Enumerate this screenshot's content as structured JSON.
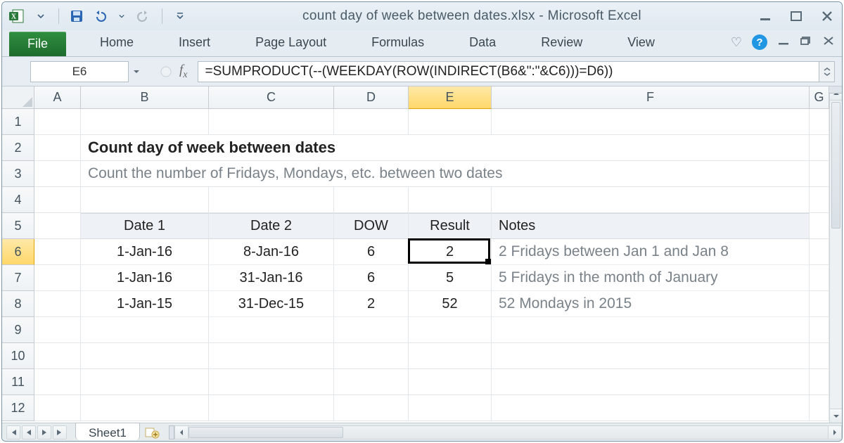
{
  "window": {
    "title": "count day of week between dates.xlsx - Microsoft Excel"
  },
  "qat": {
    "save": "save",
    "undo": "undo",
    "redo": "redo"
  },
  "ribbon": {
    "file": "File",
    "tabs": [
      "Home",
      "Insert",
      "Page Layout",
      "Formulas",
      "Data",
      "Review",
      "View"
    ]
  },
  "formula_bar": {
    "name_box": "E6",
    "formula": "=SUMPRODUCT(--(WEEKDAY(ROW(INDIRECT(B6&\":\"&C6)))=D6))"
  },
  "columns": {
    "labels": [
      "A",
      "B",
      "C",
      "D",
      "E",
      "F",
      "G"
    ],
    "widths": [
      66,
      182,
      178,
      106,
      118,
      452,
      28
    ],
    "selected_index": 4
  },
  "rows": {
    "count": 12,
    "height": 37,
    "selected_index": 5
  },
  "content": {
    "title": "Count day of week between dates",
    "subtitle": "Count the number of Fridays, Mondays, etc. between two dates",
    "headers": {
      "date1": "Date 1",
      "date2": "Date 2",
      "dow": "DOW",
      "result": "Result",
      "notes": "Notes"
    },
    "data": [
      {
        "date1": "1-Jan-16",
        "date2": "8-Jan-16",
        "dow": "6",
        "result": "2",
        "note": "2 Fridays between Jan 1 and Jan 8"
      },
      {
        "date1": "1-Jan-16",
        "date2": "31-Jan-16",
        "dow": "6",
        "result": "5",
        "note": "5 Fridays in the month of January"
      },
      {
        "date1": "1-Jan-15",
        "date2": "31-Dec-15",
        "dow": "2",
        "result": "52",
        "note": "52 Mondays in 2015"
      }
    ]
  },
  "selection": {
    "col_index": 4,
    "row_index": 5
  },
  "sheets": {
    "active": "Sheet1"
  },
  "colors": {
    "header_fill": "#eef2f6",
    "accent_col_header": "#ffd76a",
    "grid_line": "#e3e6e9"
  }
}
